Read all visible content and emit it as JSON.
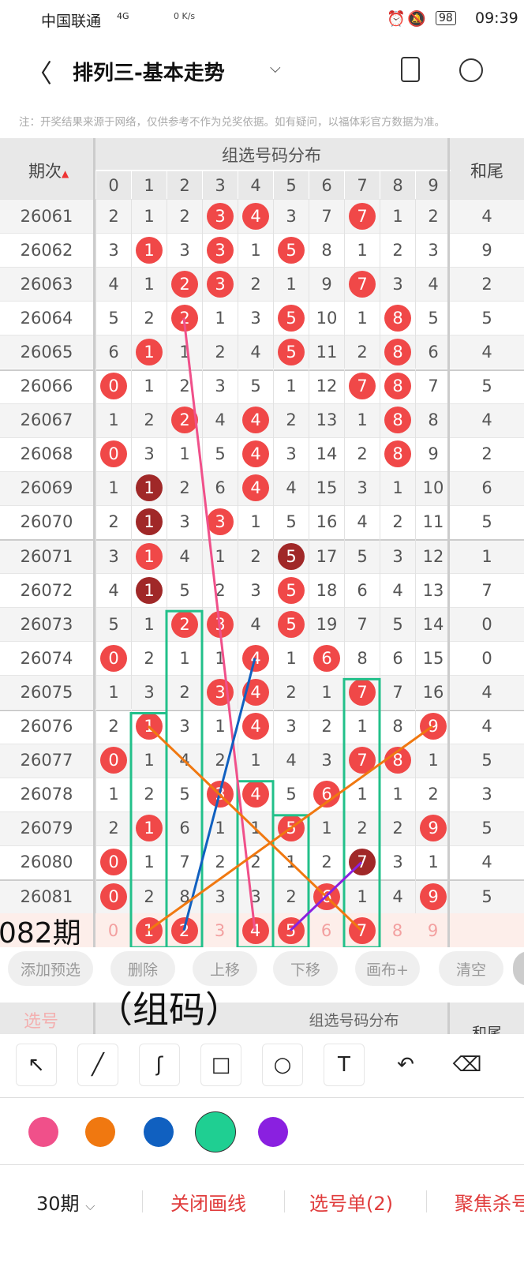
{
  "status": {
    "carrier": "中国联通",
    "network": "4G",
    "speed": "0 K/s",
    "battery": "98",
    "time": "09:39"
  },
  "header": {
    "title": "排列三-基本走势",
    "icons": [
      "back-icon",
      "chevron-down-icon",
      "device-icon",
      "share-icon"
    ]
  },
  "note": "注：开奖结果来源于网络，仅供参考不作为兑奖依据。如有疑问，以福体彩官方数据为准。",
  "table": {
    "col_issue": "期次",
    "col_group": "组选号码分布",
    "col_tail": "和尾",
    "digits": [
      "0",
      "1",
      "2",
      "3",
      "4",
      "5",
      "6",
      "7",
      "8",
      "9"
    ],
    "rows": [
      {
        "issue": "26061",
        "cells": [
          2,
          1,
          2,
          3,
          4,
          3,
          7,
          7,
          1,
          2
        ],
        "hits": [
          3,
          4,
          7
        ],
        "repeat_hits": [],
        "tail": "4"
      },
      {
        "issue": "26062",
        "cells": [
          3,
          1,
          3,
          3,
          1,
          5,
          8,
          1,
          2,
          3
        ],
        "hits": [
          1,
          3,
          5
        ],
        "repeat_hits": [],
        "tail": "9"
      },
      {
        "issue": "26063",
        "cells": [
          4,
          1,
          2,
          3,
          2,
          1,
          9,
          7,
          3,
          4
        ],
        "hits": [
          2,
          3,
          7
        ],
        "repeat_hits": [],
        "tail": "2"
      },
      {
        "issue": "26064",
        "cells": [
          5,
          2,
          2,
          1,
          3,
          5,
          10,
          1,
          8,
          5
        ],
        "hits": [
          2,
          5,
          8
        ],
        "repeat_hits": [],
        "tail": "5"
      },
      {
        "issue": "26065",
        "cells": [
          6,
          1,
          1,
          2,
          4,
          5,
          11,
          2,
          8,
          6
        ],
        "hits": [
          1,
          5,
          8
        ],
        "repeat_hits": [],
        "tail": "4"
      },
      {
        "issue": "26066",
        "cells": [
          0,
          1,
          2,
          3,
          5,
          1,
          12,
          7,
          8,
          7
        ],
        "hits": [
          0,
          7,
          8
        ],
        "repeat_hits": [],
        "tail": "5"
      },
      {
        "issue": "26067",
        "cells": [
          1,
          2,
          2,
          4,
          4,
          2,
          13,
          1,
          8,
          8
        ],
        "hits": [
          2,
          4,
          8
        ],
        "repeat_hits": [],
        "tail": "4"
      },
      {
        "issue": "26068",
        "cells": [
          0,
          3,
          1,
          5,
          4,
          3,
          14,
          2,
          8,
          9
        ],
        "hits": [
          0,
          4,
          8
        ],
        "repeat_hits": [],
        "tail": "2"
      },
      {
        "issue": "26069",
        "cells": [
          1,
          1,
          2,
          6,
          4,
          4,
          15,
          3,
          1,
          10
        ],
        "hits": [
          4
        ],
        "repeat_hits": [
          1
        ],
        "tail": "6"
      },
      {
        "issue": "26070",
        "cells": [
          2,
          1,
          3,
          3,
          1,
          5,
          16,
          4,
          2,
          11
        ],
        "hits": [
          3
        ],
        "repeat_hits": [
          1
        ],
        "tail": "5"
      },
      {
        "issue": "26071",
        "cells": [
          3,
          1,
          4,
          1,
          2,
          5,
          17,
          5,
          3,
          12
        ],
        "hits": [
          1
        ],
        "repeat_hits": [
          5
        ],
        "tail": "1"
      },
      {
        "issue": "26072",
        "cells": [
          4,
          1,
          5,
          2,
          3,
          5,
          18,
          6,
          4,
          13
        ],
        "hits": [
          5
        ],
        "repeat_hits": [
          1
        ],
        "tail": "7"
      },
      {
        "issue": "26073",
        "cells": [
          5,
          1,
          2,
          3,
          4,
          5,
          19,
          7,
          5,
          14
        ],
        "hits": [
          2,
          3,
          5
        ],
        "repeat_hits": [],
        "tail": "0"
      },
      {
        "issue": "26074",
        "cells": [
          0,
          2,
          1,
          1,
          4,
          1,
          6,
          8,
          6,
          15
        ],
        "hits": [
          0,
          4,
          6
        ],
        "repeat_hits": [],
        "tail": "0"
      },
      {
        "issue": "26075",
        "cells": [
          1,
          3,
          2,
          3,
          4,
          2,
          1,
          7,
          7,
          16
        ],
        "hits": [
          3,
          4,
          7
        ],
        "repeat_hits": [],
        "tail": "4"
      },
      {
        "issue": "26076",
        "cells": [
          2,
          1,
          3,
          1,
          4,
          3,
          2,
          1,
          8,
          9
        ],
        "hits": [
          1,
          4,
          9
        ],
        "repeat_hits": [],
        "tail": "4"
      },
      {
        "issue": "26077",
        "cells": [
          0,
          1,
          4,
          2,
          1,
          4,
          3,
          7,
          8,
          1
        ],
        "hits": [
          0,
          7,
          8
        ],
        "repeat_hits": [],
        "tail": "5"
      },
      {
        "issue": "26078",
        "cells": [
          1,
          2,
          5,
          3,
          4,
          5,
          6,
          1,
          1,
          2
        ],
        "hits": [
          3,
          4,
          6
        ],
        "repeat_hits": [],
        "tail": "3"
      },
      {
        "issue": "26079",
        "cells": [
          2,
          1,
          6,
          1,
          1,
          5,
          1,
          2,
          2,
          9
        ],
        "hits": [
          1,
          5,
          9
        ],
        "repeat_hits": [],
        "tail": "5"
      },
      {
        "issue": "26080",
        "cells": [
          0,
          1,
          7,
          2,
          2,
          1,
          2,
          7,
          3,
          1
        ],
        "hits": [
          0
        ],
        "repeat_hits": [
          7
        ],
        "tail": "4"
      },
      {
        "issue": "26081",
        "cells": [
          0,
          2,
          8,
          3,
          3,
          2,
          6,
          1,
          4,
          9
        ],
        "hits": [
          0,
          6,
          9
        ],
        "repeat_hits": [],
        "tail": "5"
      }
    ],
    "prediction": {
      "label": "082期",
      "sub_label": "选号",
      "cells": [
        "0",
        "1",
        "2",
        "3",
        "4",
        "5",
        "6",
        "7",
        "8",
        "9"
      ],
      "selected": [
        1,
        2,
        4,
        5,
        7
      ]
    }
  },
  "drawings": {
    "boxes": [
      {
        "col": 1,
        "from": "26076",
        "color": "#22c08a"
      },
      {
        "col": 2,
        "from": "26073",
        "color": "#22c08a"
      },
      {
        "col": 4,
        "from": "26078",
        "color": "#22c08a"
      },
      {
        "col": 5,
        "from": "26079",
        "color": "#22c08a"
      },
      {
        "col": 7,
        "from": "26075",
        "color": "#22c08a"
      }
    ],
    "lines": [
      {
        "from": [
          "26064",
          2
        ],
        "to": [
          "26082",
          4
        ],
        "color": "#f0508a"
      },
      {
        "from": [
          "26074",
          4
        ],
        "to": [
          "26082",
          2
        ],
        "color": "#1060c0"
      },
      {
        "from": [
          "26076",
          1
        ],
        "to": [
          "26082",
          7
        ],
        "color": "#f07810"
      },
      {
        "from": [
          "26076",
          9
        ],
        "to": [
          "26082",
          1
        ],
        "color": "#f07810"
      },
      {
        "from": [
          "26080",
          7
        ],
        "to": [
          "26082",
          5
        ],
        "color": "#8a20e0"
      }
    ]
  },
  "overlay_text": "（组码）",
  "actions": [
    "添加预选",
    "删除",
    "上移",
    "下移",
    "画布+",
    "清空"
  ],
  "tools": [
    "arrow-icon",
    "line-icon",
    "curve-icon",
    "rectangle-icon",
    "circle-icon",
    "text-icon",
    "undo-icon",
    "eraser-icon"
  ],
  "palette": {
    "colors": [
      "#f0508a",
      "#f07810",
      "#1060c0",
      "#1fcf92",
      "#8a20e0"
    ],
    "selected": 3
  },
  "bottom": {
    "period": "30期",
    "close_draw": "关闭画线",
    "pick_list": "选号单(2)",
    "focus": "聚焦杀号"
  }
}
